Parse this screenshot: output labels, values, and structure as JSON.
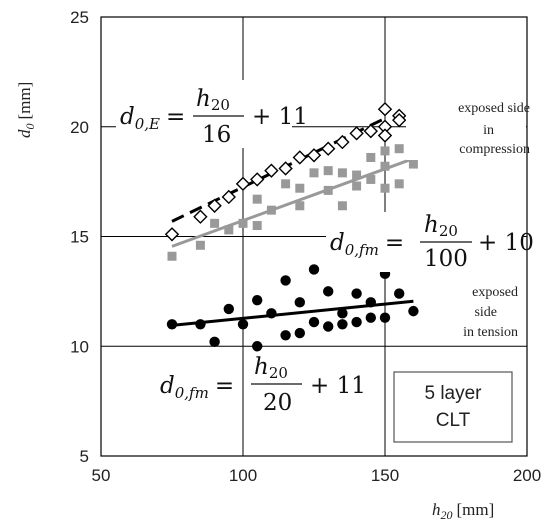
{
  "chart_data": {
    "type": "scatter",
    "xlabel": "h20 [mm]",
    "ylabel": "d0 [mm]",
    "xlabel_main": "h",
    "xlabel_sub": "20",
    "xlabel_unit": "[mm]",
    "ylabel_main": "d",
    "ylabel_sub": "0",
    "ylabel_unit": "[mm]",
    "xlim": [
      50,
      200
    ],
    "ylim": [
      5,
      25
    ],
    "xticks": [
      50,
      100,
      150,
      200
    ],
    "yticks": [
      5,
      10,
      15,
      20,
      25
    ],
    "grid": true,
    "series": [
      {
        "marker": "diamond-open",
        "color": "#000000",
        "points": [
          [
            75,
            15.1
          ],
          [
            85,
            15.9
          ],
          [
            90,
            16.4
          ],
          [
            95,
            16.8
          ],
          [
            100,
            17.4
          ],
          [
            105,
            17.6
          ],
          [
            110,
            18.0
          ],
          [
            115,
            18.1
          ],
          [
            120,
            18.6
          ],
          [
            125,
            18.7
          ],
          [
            130,
            19.0
          ],
          [
            135,
            19.3
          ],
          [
            140,
            19.7
          ],
          [
            145,
            19.8
          ],
          [
            150,
            20.0
          ],
          [
            150,
            20.8
          ],
          [
            150,
            19.6
          ],
          [
            155,
            20.5
          ],
          [
            155,
            20.3
          ],
          [
            160,
            20.6
          ]
        ]
      },
      {
        "marker": "square",
        "color": "#999999",
        "points": [
          [
            75,
            14.1
          ],
          [
            85,
            14.6
          ],
          [
            90,
            15.6
          ],
          [
            95,
            15.3
          ],
          [
            100,
            15.6
          ],
          [
            105,
            16.7
          ],
          [
            105,
            15.5
          ],
          [
            110,
            16.2
          ],
          [
            115,
            17.4
          ],
          [
            120,
            17.2
          ],
          [
            120,
            16.4
          ],
          [
            125,
            17.9
          ],
          [
            130,
            17.1
          ],
          [
            130,
            18.0
          ],
          [
            135,
            17.9
          ],
          [
            135,
            16.4
          ],
          [
            140,
            17.8
          ],
          [
            140,
            17.3
          ],
          [
            145,
            18.6
          ],
          [
            145,
            17.6
          ],
          [
            150,
            18.9
          ],
          [
            150,
            18.2
          ],
          [
            150,
            17.2
          ],
          [
            155,
            19.0
          ],
          [
            155,
            17.4
          ],
          [
            160,
            18.3
          ]
        ]
      },
      {
        "marker": "circle",
        "color": "#000000",
        "points": [
          [
            75,
            11.0
          ],
          [
            85,
            11.0
          ],
          [
            90,
            10.2
          ],
          [
            95,
            11.7
          ],
          [
            100,
            11.0
          ],
          [
            105,
            12.1
          ],
          [
            105,
            10.0
          ],
          [
            110,
            11.5
          ],
          [
            115,
            13.0
          ],
          [
            115,
            10.5
          ],
          [
            120,
            12.0
          ],
          [
            120,
            10.6
          ],
          [
            125,
            13.5
          ],
          [
            125,
            11.1
          ],
          [
            130,
            12.5
          ],
          [
            130,
            10.9
          ],
          [
            135,
            11.5
          ],
          [
            135,
            11.0
          ],
          [
            140,
            12.4
          ],
          [
            140,
            11.1
          ],
          [
            145,
            12.0
          ],
          [
            145,
            11.3
          ],
          [
            150,
            13.3
          ],
          [
            150,
            11.3
          ],
          [
            155,
            12.4
          ],
          [
            160,
            11.6
          ]
        ]
      }
    ],
    "fits": [
      {
        "style": "dashed",
        "color": "#000000",
        "x": [
          75,
          150
        ],
        "y": [
          15.69,
          20.38
        ]
      },
      {
        "style": "solid",
        "color": "#999999",
        "x": [
          75,
          160
        ],
        "y": [
          14.55,
          18.55
        ]
      },
      {
        "style": "solid",
        "color": "#000000",
        "x": [
          75,
          160
        ],
        "y": [
          10.95,
          12.05
        ]
      }
    ],
    "equations": [
      {
        "lhs_main": "d",
        "lhs_sub": "0,E",
        "num": "h",
        "num_sub": "20",
        "den": "16",
        "rest": "+ 11"
      },
      {
        "lhs_main": "d",
        "lhs_sub": "0,fm",
        "num": "h",
        "num_sub": "20",
        "den": "100",
        "rest": "+ 10"
      },
      {
        "lhs_main": "d",
        "lhs_sub": "0,fm",
        "num": "h",
        "num_sub": "20",
        "den": "20",
        "rest": "+ 11"
      }
    ],
    "annotations": {
      "compression": [
        "exposed side",
        "in",
        "compression"
      ],
      "tension": [
        "exposed",
        "side",
        "in tension"
      ]
    },
    "legend_box": [
      "5 layer",
      "CLT"
    ]
  }
}
